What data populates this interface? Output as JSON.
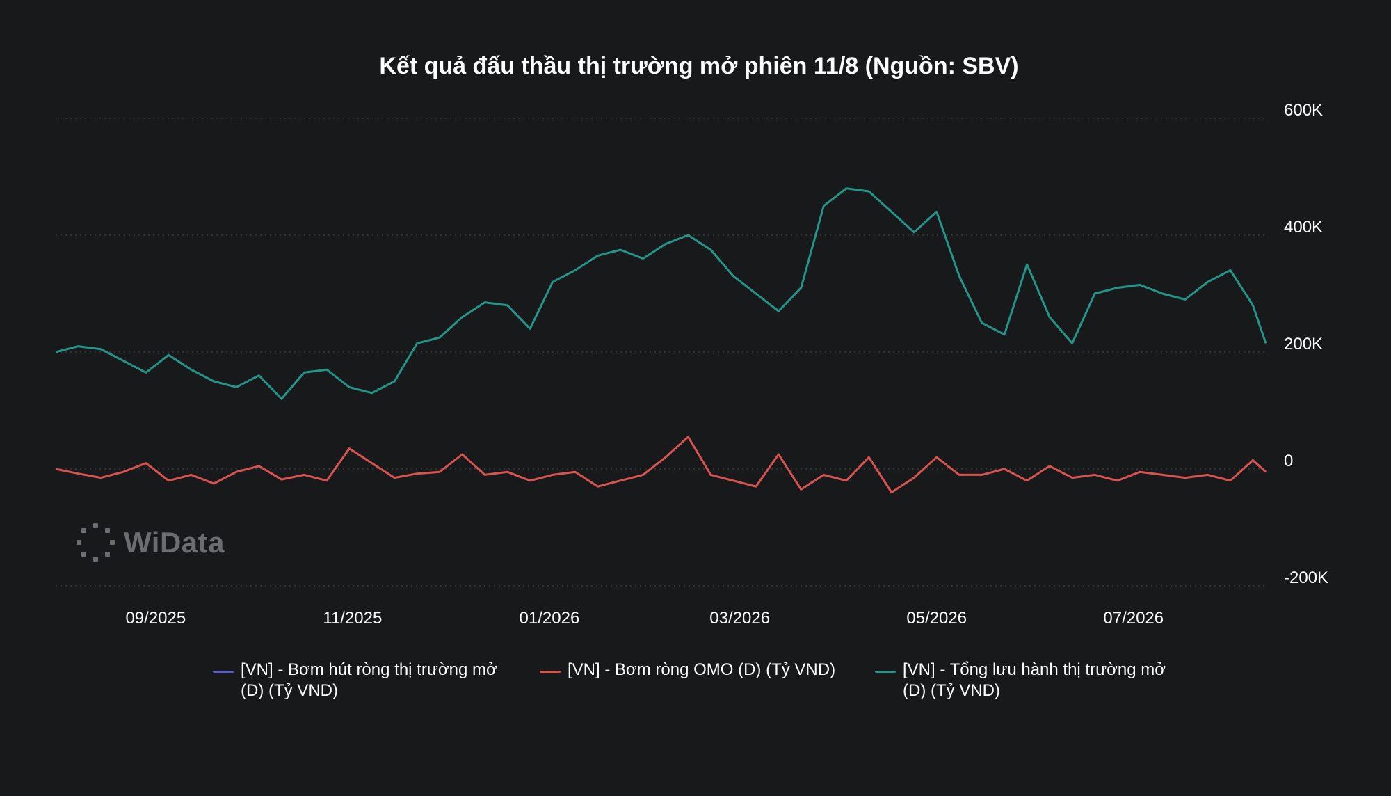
{
  "chart_data": {
    "type": "line",
    "title": "Kết quả đấu thầu thị trường mở phiên 11/8 (Nguồn: SBV)",
    "xlabel": "",
    "ylabel": "",
    "x_range": [
      "2025-08-01",
      "2026-08-11"
    ],
    "x_ticks": [
      "09/2025",
      "11/2025",
      "01/2026",
      "03/2026",
      "05/2026",
      "07/2026"
    ],
    "y_ticks": [
      "600K",
      "400K",
      "200K",
      "0",
      "-200K"
    ],
    "ylim": [
      -200000,
      600000
    ],
    "grid": true,
    "legend_position": "bottom",
    "series": [
      {
        "name": "[VN] - Bơm hút ròng thị trường mở (D) (Tỷ VND)",
        "color": "#5b5fc7",
        "dates": [],
        "values": []
      },
      {
        "name": "[VN] - Bơm ròng OMO (D) (Tỷ VND)",
        "color": "#d9534f",
        "dates": [
          "2025-08-01",
          "2025-08-08",
          "2025-08-15",
          "2025-08-22",
          "2025-08-29",
          "2025-09-05",
          "2025-09-12",
          "2025-09-19",
          "2025-09-26",
          "2025-10-03",
          "2025-10-10",
          "2025-10-17",
          "2025-10-24",
          "2025-10-31",
          "2025-11-07",
          "2025-11-14",
          "2025-11-21",
          "2025-11-28",
          "2025-12-05",
          "2025-12-12",
          "2025-12-19",
          "2025-12-26",
          "2026-01-02",
          "2026-01-09",
          "2026-01-16",
          "2026-01-23",
          "2026-01-30",
          "2026-02-06",
          "2026-02-13",
          "2026-02-20",
          "2026-02-27",
          "2026-03-06",
          "2026-03-13",
          "2026-03-20",
          "2026-03-27",
          "2026-04-03",
          "2026-04-10",
          "2026-04-17",
          "2026-04-24",
          "2026-05-01",
          "2026-05-08",
          "2026-05-15",
          "2026-05-22",
          "2026-05-29",
          "2026-06-05",
          "2026-06-12",
          "2026-06-19",
          "2026-06-26",
          "2026-07-03",
          "2026-07-10",
          "2026-07-17",
          "2026-07-24",
          "2026-07-31",
          "2026-08-07",
          "2026-08-11"
        ],
        "values": [
          0,
          -8000,
          -15000,
          -5000,
          10000,
          -20000,
          -10000,
          -25000,
          -5000,
          5000,
          -18000,
          -10000,
          -20000,
          35000,
          10000,
          -15000,
          -8000,
          -5000,
          25000,
          -10000,
          -5000,
          -20000,
          -10000,
          -5000,
          -30000,
          -20000,
          -10000,
          20000,
          55000,
          -10000,
          -20000,
          -30000,
          25000,
          -35000,
          -10000,
          -20000,
          20000,
          -40000,
          -15000,
          20000,
          -10000,
          -10000,
          0,
          -20000,
          5000,
          -15000,
          -10000,
          -20000,
          -5000,
          -10000,
          -15000,
          -10000,
          -20000,
          15000,
          -5000
        ]
      },
      {
        "name": "[VN] - Tổng lưu hành thị trường mở (D) (Tỷ VND)",
        "color": "#23968a",
        "dates": [
          "2025-08-01",
          "2025-08-08",
          "2025-08-15",
          "2025-08-22",
          "2025-08-29",
          "2025-09-05",
          "2025-09-12",
          "2025-09-19",
          "2025-09-26",
          "2025-10-03",
          "2025-10-10",
          "2025-10-17",
          "2025-10-24",
          "2025-10-31",
          "2025-11-07",
          "2025-11-14",
          "2025-11-21",
          "2025-11-28",
          "2025-12-05",
          "2025-12-12",
          "2025-12-19",
          "2025-12-26",
          "2026-01-02",
          "2026-01-09",
          "2026-01-16",
          "2026-01-23",
          "2026-01-30",
          "2026-02-06",
          "2026-02-13",
          "2026-02-20",
          "2026-02-27",
          "2026-03-06",
          "2026-03-13",
          "2026-03-20",
          "2026-03-27",
          "2026-04-03",
          "2026-04-10",
          "2026-04-17",
          "2026-04-24",
          "2026-05-01",
          "2026-05-08",
          "2026-05-15",
          "2026-05-22",
          "2026-05-29",
          "2026-06-05",
          "2026-06-12",
          "2026-06-19",
          "2026-06-26",
          "2026-07-03",
          "2026-07-10",
          "2026-07-17",
          "2026-07-24",
          "2026-07-31",
          "2026-08-07",
          "2026-08-11"
        ],
        "values": [
          200000,
          210000,
          205000,
          185000,
          165000,
          195000,
          170000,
          150000,
          140000,
          160000,
          120000,
          165000,
          170000,
          140000,
          130000,
          150000,
          215000,
          225000,
          260000,
          285000,
          280000,
          240000,
          320000,
          340000,
          365000,
          375000,
          360000,
          385000,
          400000,
          375000,
          330000,
          300000,
          270000,
          310000,
          450000,
          480000,
          475000,
          440000,
          405000,
          440000,
          330000,
          250000,
          230000,
          350000,
          260000,
          215000,
          300000,
          310000,
          315000,
          300000,
          290000,
          320000,
          340000,
          280000,
          215000
        ]
      }
    ]
  },
  "watermark": "WiData"
}
